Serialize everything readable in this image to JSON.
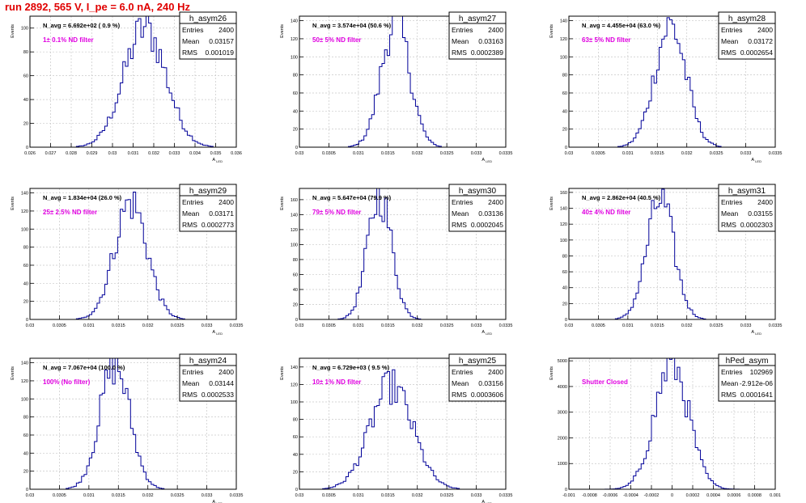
{
  "title": "run 2892,   565 V, I_pe = 6.0 nA, 240 Hz",
  "colors": {
    "title": "#e00000",
    "annotation": "#e000e0",
    "histogram": "#000099",
    "grid": "#c8c8c8",
    "frame": "#000000"
  },
  "chart_data": [
    {
      "type": "bar",
      "name": "h_asym26",
      "ylabel": "Events",
      "xlabel": "A_LED",
      "nav": "N_avg = 6.692e+02 ( 0.9 %)",
      "annotation": "1± 0.1% ND filter",
      "stats": {
        "entries": "2400",
        "mean": "0.03157",
        "rms": "0.001019"
      },
      "xlim": [
        0.026,
        0.036
      ],
      "ylim": [
        0,
        110
      ],
      "xticks": [
        "0.026",
        "0.027",
        "0.028",
        "0.029",
        "0.03",
        "0.031",
        "0.032",
        "0.033",
        "0.034",
        "0.035",
        "0.036"
      ],
      "yticks": [
        0,
        20,
        40,
        60,
        80,
        100
      ],
      "dist": {
        "mean": 0.03157,
        "rms": 0.001019,
        "peak": 100
      }
    },
    {
      "type": "bar",
      "name": "h_asym27",
      "ylabel": "Events",
      "xlabel": "A_LED",
      "nav": "N_avg = 3.574e+04 (50.6 %)",
      "annotation": "50± 5% ND filter",
      "stats": {
        "entries": "2400",
        "mean": "0.03163",
        "rms": "0.0002389"
      },
      "xlim": [
        0.03,
        0.0335
      ],
      "ylim": [
        0,
        145
      ],
      "xticks": [
        "0.03",
        "0.0305",
        "0.031",
        "0.0315",
        "0.032",
        "0.0325",
        "0.033",
        "0.0335"
      ],
      "yticks": [
        0,
        20,
        40,
        60,
        80,
        100,
        120,
        140
      ],
      "dist": {
        "mean": 0.03163,
        "rms": 0.0002389,
        "peak": 140
      }
    },
    {
      "type": "bar",
      "name": "h_asym28",
      "ylabel": "Events",
      "xlabel": "A_LED",
      "nav": "N_avg = 4.455e+04 (63.0 %)",
      "annotation": "63± 5% ND filter",
      "stats": {
        "entries": "2400",
        "mean": "0.03172",
        "rms": "0.0002654"
      },
      "xlim": [
        0.03,
        0.0335
      ],
      "ylim": [
        0,
        145
      ],
      "xticks": [
        "0.03",
        "0.0305",
        "0.031",
        "0.0315",
        "0.032",
        "0.0325",
        "0.033",
        "0.0335"
      ],
      "yticks": [
        0,
        20,
        40,
        60,
        80,
        100,
        120,
        140
      ],
      "dist": {
        "mean": 0.03172,
        "rms": 0.0002654,
        "peak": 135
      }
    },
    {
      "type": "bar",
      "name": "h_asym29",
      "ylabel": "Events",
      "xlabel": "A_LED",
      "nav": "N_avg = 1.834e+04 (26.0 %)",
      "annotation": "25± 2.5% ND filter",
      "stats": {
        "entries": "2400",
        "mean": "0.03171",
        "rms": "0.0002773"
      },
      "xlim": [
        0.03,
        0.0335
      ],
      "ylim": [
        0,
        145
      ],
      "xticks": [
        "0.03",
        "0.0305",
        "0.031",
        "0.0315",
        "0.032",
        "0.0325",
        "0.033",
        "0.0335"
      ],
      "yticks": [
        0,
        20,
        40,
        60,
        80,
        100,
        120,
        140
      ],
      "dist": {
        "mean": 0.03171,
        "rms": 0.0002773,
        "peak": 130
      }
    },
    {
      "type": "bar",
      "name": "h_asym30",
      "ylabel": "Events",
      "xlabel": "A_LED",
      "nav": "N_avg = 5.647e+04 (79.9 %)",
      "annotation": "79± 5% ND filter",
      "stats": {
        "entries": "2400",
        "mean": "0.03136",
        "rms": "0.0002045"
      },
      "xlim": [
        0.03,
        0.0335
      ],
      "ylim": [
        0,
        175
      ],
      "xticks": [
        "0.03",
        "0.0305",
        "0.031",
        "0.0315",
        "0.032",
        "0.0325",
        "0.033",
        "0.0335"
      ],
      "yticks": [
        0,
        20,
        40,
        60,
        80,
        100,
        120,
        140,
        160
      ],
      "dist": {
        "mean": 0.03136,
        "rms": 0.0002045,
        "peak": 165
      }
    },
    {
      "type": "bar",
      "name": "h_asym31",
      "ylabel": "Events",
      "xlabel": "A_LED",
      "nav": "N_avg = 2.862e+04 (40.5 %)",
      "annotation": "40± 4% ND filter",
      "stats": {
        "entries": "2400",
        "mean": "0.03155",
        "rms": "0.0002303"
      },
      "xlim": [
        0.03,
        0.0335
      ],
      "ylim": [
        0,
        165
      ],
      "xticks": [
        "0.03",
        "0.0305",
        "0.031",
        "0.0315",
        "0.032",
        "0.0325",
        "0.033",
        "0.0335"
      ],
      "yticks": [
        0,
        20,
        40,
        60,
        80,
        100,
        120,
        140,
        160
      ],
      "dist": {
        "mean": 0.03155,
        "rms": 0.0002303,
        "peak": 150
      }
    },
    {
      "type": "bar",
      "name": "h_asym24",
      "ylabel": "Events",
      "xlabel": "A_LED",
      "nav": "N_avg = 7.067e+04 (100.0 %)",
      "annotation": "100% (No filter)",
      "stats": {
        "entries": "2400",
        "mean": "0.03144",
        "rms": "0.0002533"
      },
      "xlim": [
        0.03,
        0.0335
      ],
      "ylim": [
        0,
        145
      ],
      "xticks": [
        "0.03",
        "0.0305",
        "0.031",
        "0.0315",
        "0.032",
        "0.0325",
        "0.033",
        "0.0335"
      ],
      "yticks": [
        0,
        20,
        40,
        60,
        80,
        100,
        120,
        140
      ],
      "dist": {
        "mean": 0.03144,
        "rms": 0.0002533,
        "peak": 138
      }
    },
    {
      "type": "bar",
      "name": "h_asym25",
      "ylabel": "Events",
      "xlabel": "A_LED",
      "nav": "N_avg = 6.729e+03 ( 9.5 %)",
      "annotation": "10± 1% ND filter",
      "stats": {
        "entries": "2400",
        "mean": "0.03156",
        "rms": "0.0003606"
      },
      "xlim": [
        0.03,
        0.0335
      ],
      "ylim": [
        0,
        150
      ],
      "xticks": [
        "0.03",
        "0.0305",
        "0.031",
        "0.0315",
        "0.032",
        "0.0325",
        "0.033",
        "0.0335"
      ],
      "yticks": [
        0,
        20,
        40,
        60,
        80,
        100,
        120,
        140
      ],
      "dist": {
        "mean": 0.03156,
        "rms": 0.0003606,
        "peak": 118
      }
    },
    {
      "type": "bar",
      "name": "hPed_asym",
      "ylabel": "Events",
      "xlabel": "",
      "nav": "",
      "annotation": "Shutter Closed",
      "stats": {
        "entries": "102969",
        "mean": "-2.912e-06",
        "rms": "0.0001641"
      },
      "xlim": [
        -0.001,
        0.001
      ],
      "ylim": [
        0,
        5100
      ],
      "xticks": [
        "-0.001",
        "-0.0008",
        "-0.0006",
        "-0.0004",
        "-0.0002",
        "0",
        "0.0002",
        "0.0004",
        "0.0006",
        "0.0008",
        "0.001"
      ],
      "yticks": [
        0,
        1000,
        2000,
        3000,
        4000,
        5000
      ],
      "dist": {
        "mean": -2.912e-06,
        "rms": 0.0001641,
        "peak": 4900
      }
    }
  ]
}
